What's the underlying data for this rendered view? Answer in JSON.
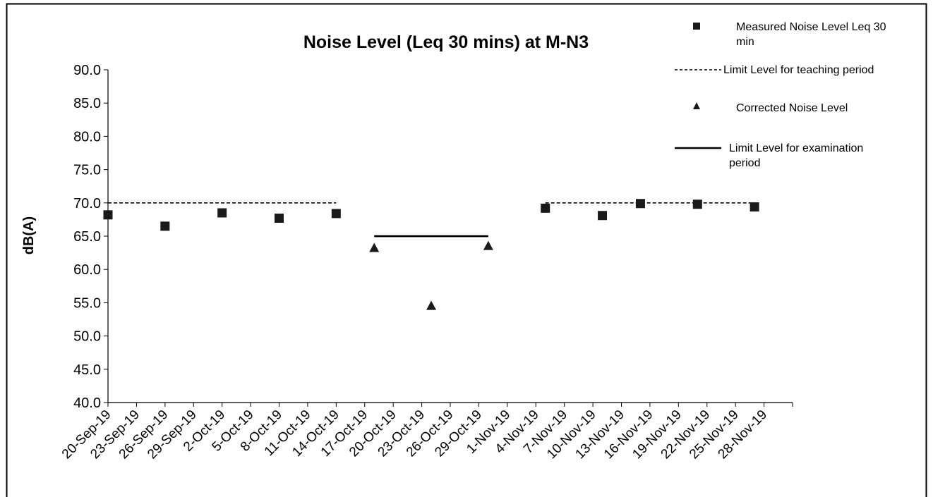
{
  "chart_data": {
    "type": "scatter",
    "title": "Noise Level (Leq 30 mins) at M-N3",
    "xlabel": "",
    "ylabel": "dB(A)",
    "ylim": [
      40,
      90
    ],
    "ytick_labels": [
      "40.0",
      "45.0",
      "50.0",
      "55.0",
      "60.0",
      "65.0",
      "70.0",
      "75.0",
      "80.0",
      "85.0",
      "90.0"
    ],
    "xlim": [
      "2019-09-20",
      "2019-12-01"
    ],
    "xtick_labels": [
      "20-Sep-19",
      "23-Sep-19",
      "26-Sep-19",
      "29-Sep-19",
      "2-Oct-19",
      "5-Oct-19",
      "8-Oct-19",
      "11-Oct-19",
      "14-Oct-19",
      "17-Oct-19",
      "20-Oct-19",
      "23-Oct-19",
      "26-Oct-19",
      "29-Oct-19",
      "1-Nov-19",
      "4-Nov-19",
      "7-Nov-19",
      "10-Nov-19",
      "13-Nov-19",
      "16-Nov-19",
      "19-Nov-19",
      "22-Nov-19",
      "25-Nov-19",
      "28-Nov-19"
    ],
    "xtick_dates": [
      "2019-09-20",
      "2019-09-23",
      "2019-09-26",
      "2019-09-29",
      "2019-10-02",
      "2019-10-05",
      "2019-10-08",
      "2019-10-11",
      "2019-10-14",
      "2019-10-17",
      "2019-10-20",
      "2019-10-23",
      "2019-10-26",
      "2019-10-29",
      "2019-11-01",
      "2019-11-04",
      "2019-11-07",
      "2019-11-10",
      "2019-11-13",
      "2019-11-16",
      "2019-11-19",
      "2019-11-22",
      "2019-11-25",
      "2019-11-28"
    ],
    "grid": false,
    "legend_position": "top-right",
    "series": [
      {
        "name": "Measured Noise Level Leq 30 min",
        "marker": "square",
        "color": "#1a1a1a",
        "points": [
          {
            "x": "2019-09-20",
            "y": 68.2
          },
          {
            "x": "2019-09-26",
            "y": 66.5
          },
          {
            "x": "2019-10-02",
            "y": 68.5
          },
          {
            "x": "2019-10-08",
            "y": 67.7
          },
          {
            "x": "2019-10-14",
            "y": 68.4
          },
          {
            "x": "2019-11-05",
            "y": 69.2
          },
          {
            "x": "2019-11-11",
            "y": 68.1
          },
          {
            "x": "2019-11-15",
            "y": 69.9
          },
          {
            "x": "2019-11-21",
            "y": 69.8
          },
          {
            "x": "2019-11-27",
            "y": 69.4
          }
        ]
      },
      {
        "name": "Limit Level for teaching period",
        "line_style": "dashed",
        "color": "#000000",
        "segments": [
          [
            {
              "x": "2019-09-20",
              "y": 70.0
            },
            {
              "x": "2019-10-14",
              "y": 70.0
            }
          ],
          [
            {
              "x": "2019-11-05",
              "y": 70.0
            },
            {
              "x": "2019-11-27",
              "y": 70.0
            }
          ]
        ]
      },
      {
        "name": "Corrected Noise Level",
        "marker": "triangle",
        "color": "#1a1a1a",
        "points": [
          {
            "x": "2019-10-18",
            "y": 63.2
          },
          {
            "x": "2019-10-24",
            "y": 54.5
          },
          {
            "x": "2019-10-30",
            "y": 63.5
          }
        ]
      },
      {
        "name": "Limit Level for examination period",
        "line_style": "solid",
        "color": "#000000",
        "segments": [
          [
            {
              "x": "2019-10-18",
              "y": 65.0
            },
            {
              "x": "2019-10-30",
              "y": 65.0
            }
          ]
        ]
      }
    ]
  }
}
